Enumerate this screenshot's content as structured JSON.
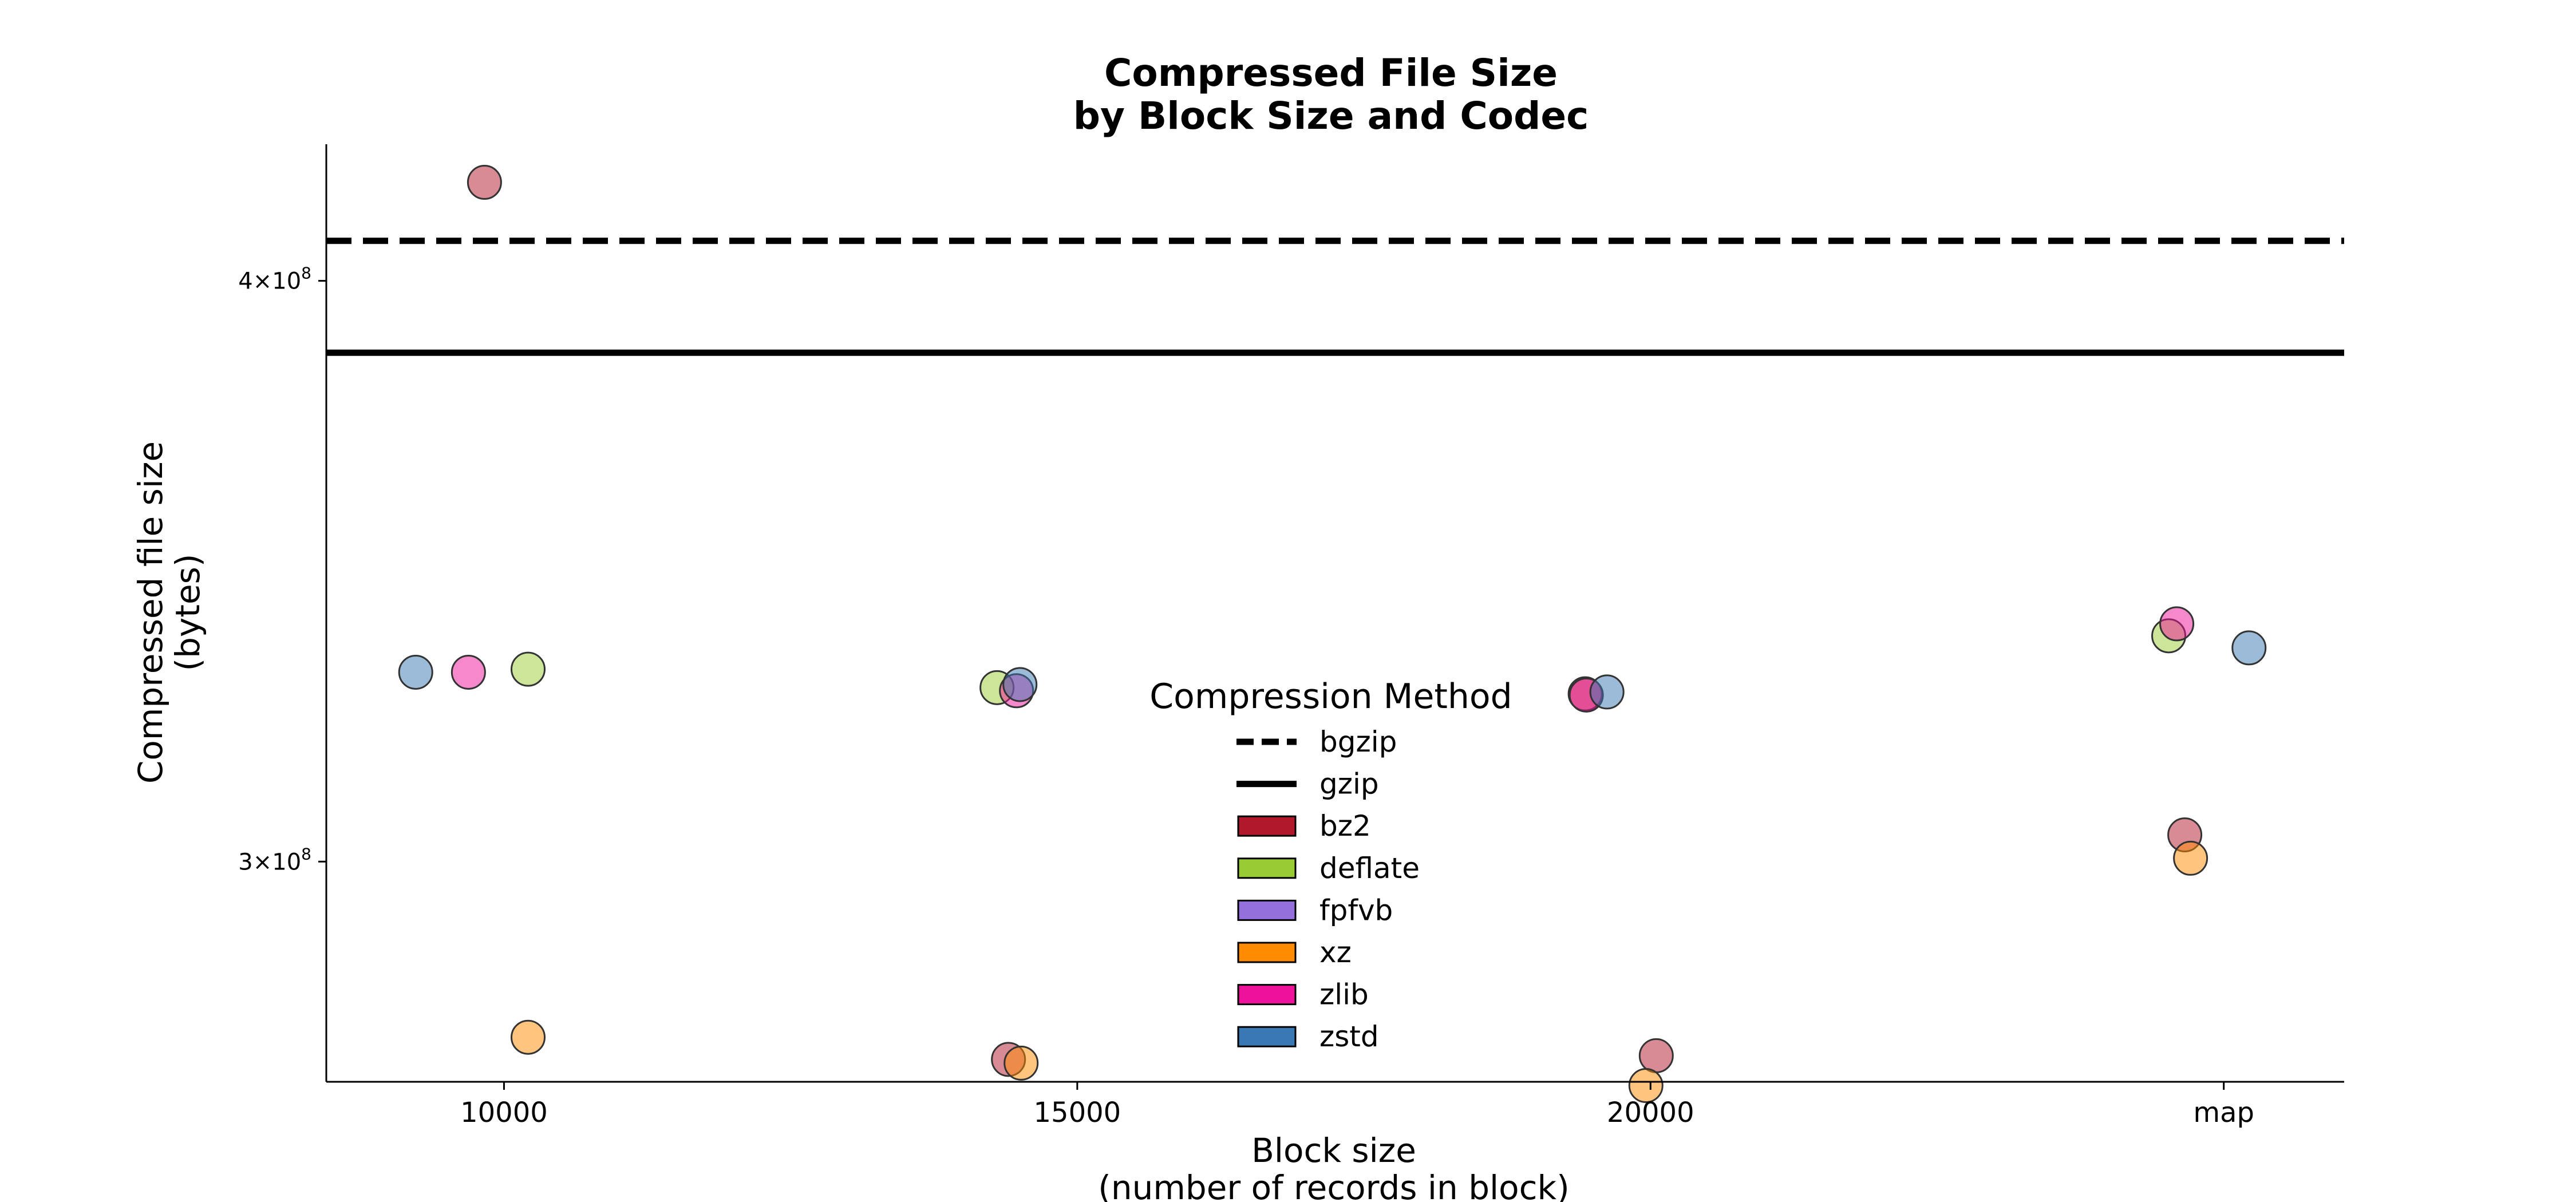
{
  "chart_data": {
    "type": "scatter",
    "title_line1": "Compressed File Size",
    "title_line2": "by Block Size and Codec",
    "xlabel_line1": "Block size",
    "xlabel_line2": "(number of records in block)",
    "ylabel_line1": "Compressed file size",
    "ylabel_line2": "(bytes)",
    "y_scale": "log",
    "ylim": [
      269000000,
      428000000
    ],
    "xlim": [
      8450,
      26050
    ],
    "x_ticks": [
      {
        "value": 10000,
        "label": "10000"
      },
      {
        "value": 15000,
        "label": "15000"
      },
      {
        "value": 20000,
        "label": "20000"
      },
      {
        "value": 25000,
        "label": "map"
      }
    ],
    "y_ticks": [
      {
        "value": 300000000,
        "base": "3×10",
        "exp": "8"
      },
      {
        "value": 400000000,
        "base": "4×10",
        "exp": "8"
      }
    ],
    "reference_lines": [
      {
        "name": "bgzip",
        "value": 408000000,
        "style": "dashed"
      },
      {
        "name": "gzip",
        "value": 386000000,
        "style": "solid"
      }
    ],
    "series": [
      {
        "name": "bz2",
        "color": "#b2182b",
        "points": [
          [
            9830,
            420000000
          ],
          [
            14400,
            272000000
          ],
          [
            19430,
            326000000
          ],
          [
            20050,
            272500000
          ],
          [
            24660,
            304000000
          ]
        ]
      },
      {
        "name": "deflate",
        "color": "#99cc33",
        "points": [
          [
            10210,
            330000000
          ],
          [
            14300,
            327000000
          ],
          [
            24520,
            335500000
          ]
        ]
      },
      {
        "name": "fpfvb",
        "color": "#9370db",
        "points": []
      },
      {
        "name": "xz",
        "color": "#ff8c00",
        "points": [
          [
            10210,
            275000000
          ],
          [
            14510,
            271500000
          ],
          [
            19960,
            268500000
          ],
          [
            24710,
            300500000
          ]
        ]
      },
      {
        "name": "zlib",
        "color": "#ee1199",
        "points": [
          [
            9690,
            329500000
          ],
          [
            14470,
            326500000
          ],
          [
            19440,
            325800000
          ],
          [
            24590,
            337500000
          ]
        ]
      },
      {
        "name": "zstd",
        "color": "#3a78b4",
        "points": [
          [
            9230,
            329500000
          ],
          [
            14500,
            327500000
          ],
          [
            19620,
            326300000
          ],
          [
            25220,
            333500000
          ]
        ]
      }
    ],
    "legend": {
      "title": "Compression Method",
      "position": "lower-center",
      "entries": [
        {
          "label": "bgzip",
          "kind": "line",
          "style": "dashed"
        },
        {
          "label": "gzip",
          "kind": "line",
          "style": "solid"
        },
        {
          "label": "bz2",
          "kind": "patch",
          "color": "#b2182b"
        },
        {
          "label": "deflate",
          "kind": "patch",
          "color": "#99cc33"
        },
        {
          "label": "fpfvb",
          "kind": "patch",
          "color": "#9370db"
        },
        {
          "label": "xz",
          "kind": "patch",
          "color": "#ff8c00"
        },
        {
          "label": "zlib",
          "kind": "patch",
          "color": "#ee1199"
        },
        {
          "label": "zstd",
          "kind": "patch",
          "color": "#3a78b4"
        }
      ]
    },
    "grid": false
  }
}
